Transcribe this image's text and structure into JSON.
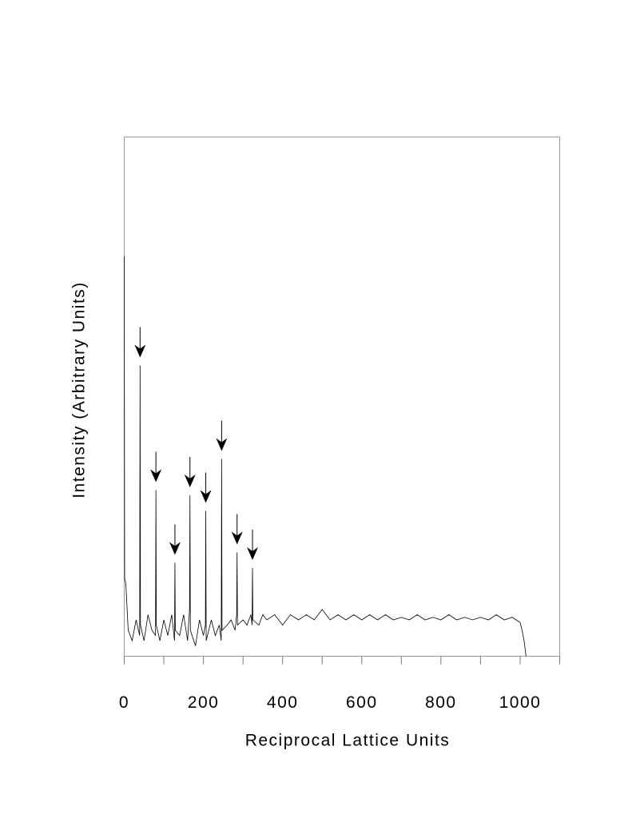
{
  "chart_data": {
    "type": "line",
    "xlabel": "Reciprocal Lattice Units",
    "ylabel": "Intensity (Arbitrary Units)",
    "x": [
      0,
      1,
      4,
      10,
      20,
      30,
      39,
      40,
      41,
      50,
      60,
      70,
      79,
      80,
      81,
      90,
      100,
      110,
      120,
      127,
      128,
      129,
      140,
      150,
      160,
      165,
      166,
      167,
      180,
      190,
      200,
      205,
      206,
      207,
      220,
      230,
      240,
      245,
      246,
      247,
      260,
      270,
      280,
      284,
      285,
      286,
      300,
      310,
      320,
      323,
      324,
      325,
      340,
      350,
      360,
      380,
      400,
      420,
      440,
      460,
      480,
      500,
      520,
      540,
      560,
      580,
      600,
      620,
      640,
      660,
      680,
      700,
      720,
      740,
      760,
      780,
      800,
      820,
      840,
      860,
      880,
      900,
      920,
      940,
      960,
      980,
      1000,
      1005,
      1010,
      1015
    ],
    "values": [
      77,
      15,
      14,
      5,
      3,
      7,
      4,
      56,
      6,
      3,
      8,
      5,
      4,
      32,
      6,
      3,
      7,
      4,
      8,
      3,
      18,
      5,
      4,
      8,
      3,
      9,
      31,
      5,
      2,
      7,
      4,
      6,
      28,
      3,
      7,
      4,
      6,
      3,
      38,
      5,
      6,
      7,
      5,
      8,
      20,
      6,
      7,
      6,
      8,
      6,
      17,
      7,
      6,
      8,
      7,
      8,
      6,
      8,
      7,
      8,
      7,
      9,
      7,
      8,
      7,
      8,
      7,
      8,
      7,
      8,
      7,
      7.5,
      7,
      8,
      7,
      7.5,
      7,
      8,
      7,
      7.5,
      7,
      7.5,
      7,
      8,
      7,
      7.5,
      6.5,
      5,
      3,
      0
    ],
    "color": "#000000",
    "xlim": [
      0,
      1100
    ],
    "ylim": [
      0,
      100
    ],
    "xticks": [
      0,
      200,
      400,
      600,
      800,
      1000
    ],
    "xticks_minor": [
      100,
      300,
      500,
      700,
      900,
      1100
    ],
    "arrows": [
      40,
      80,
      128,
      166,
      206,
      246,
      285,
      324
    ],
    "grid": false
  }
}
